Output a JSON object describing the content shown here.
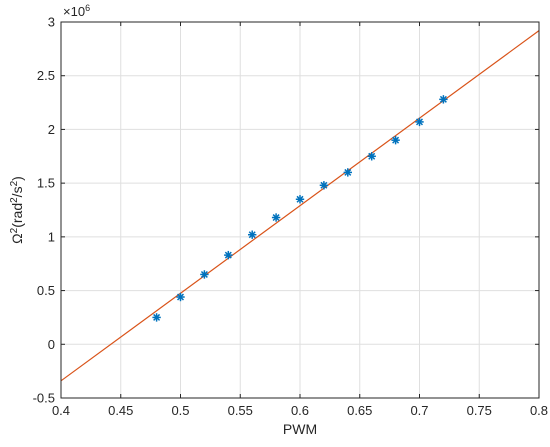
{
  "chart_data": {
    "type": "scatter",
    "title": "",
    "xlabel": "PWM",
    "ylabel_base": "Ω",
    "ylabel_exp": "2",
    "ylabel_unit_open": "(rad",
    "ylabel_unit_exp1": "2",
    "ylabel_unit_mid": "/s",
    "ylabel_unit_exp2": "2",
    "ylabel_unit_close": ")",
    "multiplier_base": "×10",
    "multiplier_exp": "6",
    "xlim": [
      0.4,
      0.8
    ],
    "ylim": [
      -0.5,
      3
    ],
    "xticks": [
      0.4,
      0.45,
      0.5,
      0.55,
      0.6,
      0.65,
      0.7,
      0.75,
      0.8
    ],
    "xtick_labels": [
      "0.4",
      "0.45",
      "0.5",
      "0.55",
      "0.6",
      "0.65",
      "0.7",
      "0.75",
      "0.8"
    ],
    "yticks": [
      -0.5,
      0,
      0.5,
      1,
      1.5,
      2,
      2.5,
      3
    ],
    "ytick_labels": [
      "-0.5",
      "0",
      "0.5",
      "1",
      "1.5",
      "2",
      "2.5",
      "3"
    ],
    "grid": true,
    "series": [
      {
        "marker": "asterisk",
        "color": "#0072BD",
        "x": [
          0.48,
          0.5,
          0.52,
          0.54,
          0.56,
          0.58,
          0.6,
          0.62,
          0.64,
          0.66,
          0.68,
          0.7,
          0.72
        ],
        "y": [
          0.25,
          0.44,
          0.65,
          0.83,
          1.02,
          1.18,
          1.35,
          1.48,
          1.6,
          1.75,
          1.9,
          2.07,
          2.28
        ]
      },
      {
        "style": "line",
        "color": "#D95319",
        "x": [
          0.4,
          0.8
        ],
        "y": [
          -0.34,
          2.92
        ]
      }
    ]
  }
}
